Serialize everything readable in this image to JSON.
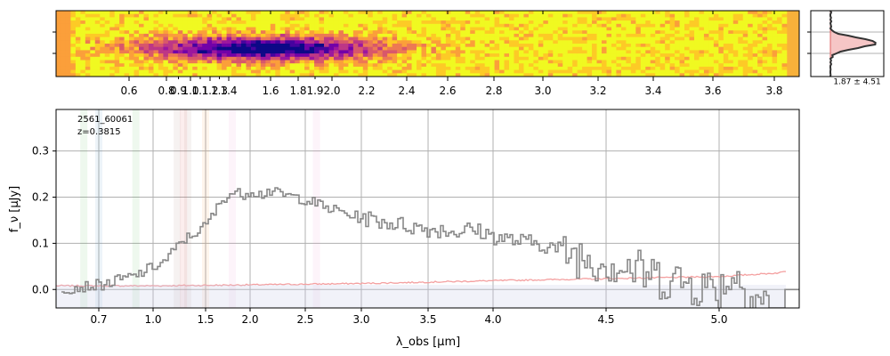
{
  "chart_data": [
    {
      "type": "heatmap",
      "panel": "2d-spectrum",
      "colormap": "plasma",
      "rows": 20,
      "cols": 150,
      "x_ticks_major": [
        "0.6",
        "0.8",
        "1.0",
        "1.2",
        "1.4",
        "1.6",
        "1.8",
        "2.0",
        "2.2",
        "2.4",
        "2.6",
        "2.8",
        "3.0",
        "3.2",
        "3.4",
        "3.6",
        "3.8"
      ],
      "x_ticks_minor": [
        "0.9",
        "1.1",
        "1.3",
        "1.9"
      ],
      "x_range": [
        0.53,
        3.87
      ]
    },
    {
      "type": "area",
      "panel": "cross-dispersion-profile",
      "annotation": "1.87 ± 4.51",
      "fill_color": "#f4b8b8",
      "line_color": "#333333"
    },
    {
      "type": "line",
      "panel": "1d-spectrum",
      "annotation": [
        "2561_60061",
        "z=0.3815"
      ],
      "xlabel": "λ_obs [μm]",
      "ylabel": "f_ν [μJy]",
      "x_ticks": [
        "0.7",
        "1.0",
        "1.5",
        "2.0",
        "2.5",
        "3.0",
        "3.5",
        "4.0",
        "4.5",
        "5.0"
      ],
      "y_ticks": [
        "0.0",
        "0.1",
        "0.2",
        "0.3"
      ],
      "xlim": [
        0.6,
        5.4
      ],
      "ylim": [
        -0.04,
        0.39
      ],
      "grid": true,
      "series": [
        {
          "role": "flux",
          "color": "#888888",
          "x": [
            0.6,
            0.65,
            0.7,
            0.75,
            0.8,
            0.85,
            0.9,
            0.95,
            1.0,
            1.05,
            1.1,
            1.15,
            1.2,
            1.25,
            1.3,
            1.35,
            1.4,
            1.45,
            1.5,
            1.55,
            1.6,
            1.65,
            1.7,
            1.75,
            1.8,
            1.85,
            1.9,
            1.95,
            2.0,
            2.05,
            2.1,
            2.15,
            2.2,
            2.3,
            2.4,
            2.5,
            2.6,
            2.7,
            2.8,
            2.9,
            3.0,
            3.1,
            3.2,
            3.3,
            3.4,
            3.5,
            3.6,
            3.7,
            3.8,
            3.9,
            4.0,
            4.1,
            4.2,
            4.3,
            4.4,
            4.5,
            4.6,
            4.7,
            4.8,
            4.9,
            5.0,
            5.05,
            5.1,
            5.15,
            5.2,
            5.25,
            5.3,
            5.35
          ],
          "y": [
            0.0,
            0.005,
            0.01,
            0.013,
            0.02,
            0.025,
            0.03,
            0.04,
            0.05,
            0.055,
            0.06,
            0.075,
            0.085,
            0.1,
            0.11,
            0.115,
            0.125,
            0.13,
            0.14,
            0.155,
            0.17,
            0.185,
            0.2,
            0.205,
            0.21,
            0.208,
            0.205,
            0.21,
            0.215,
            0.21,
            0.205,
            0.215,
            0.21,
            0.205,
            0.2,
            0.195,
            0.185,
            0.175,
            0.17,
            0.16,
            0.155,
            0.15,
            0.145,
            0.14,
            0.135,
            0.13,
            0.13,
            0.125,
            0.13,
            0.125,
            0.115,
            0.105,
            0.1,
            0.085,
            0.07,
            0.06,
            0.045,
            0.03,
            0.02,
            0.01,
            0.0,
            0.03,
            0.02,
            -0.01,
            -0.02,
            -0.03,
            -0.04,
            -0.04
          ]
        },
        {
          "role": "error",
          "color": "#f4a0a0",
          "x": [
            0.6,
            1.0,
            2.0,
            3.0,
            4.0,
            5.0,
            5.3,
            5.35
          ],
          "y": [
            0.008,
            0.008,
            0.01,
            0.013,
            0.019,
            0.028,
            0.036,
            0.042
          ]
        }
      ],
      "line_bands": [
        {
          "x": 0.665,
          "color": "#2ca02c"
        },
        {
          "x": 0.7,
          "color": "#1f77b4"
        },
        {
          "x": 0.905,
          "color": "#2ca02c"
        },
        {
          "x": 1.23,
          "color": "#8c564b"
        },
        {
          "x": 1.29,
          "color": "#d62728"
        },
        {
          "x": 1.33,
          "color": "#8c564b"
        },
        {
          "x": 1.5,
          "color": "#ff7f0e"
        },
        {
          "x": 1.8,
          "color": "#e377c2"
        },
        {
          "x": 2.6,
          "color": "#e377c2"
        }
      ]
    }
  ]
}
